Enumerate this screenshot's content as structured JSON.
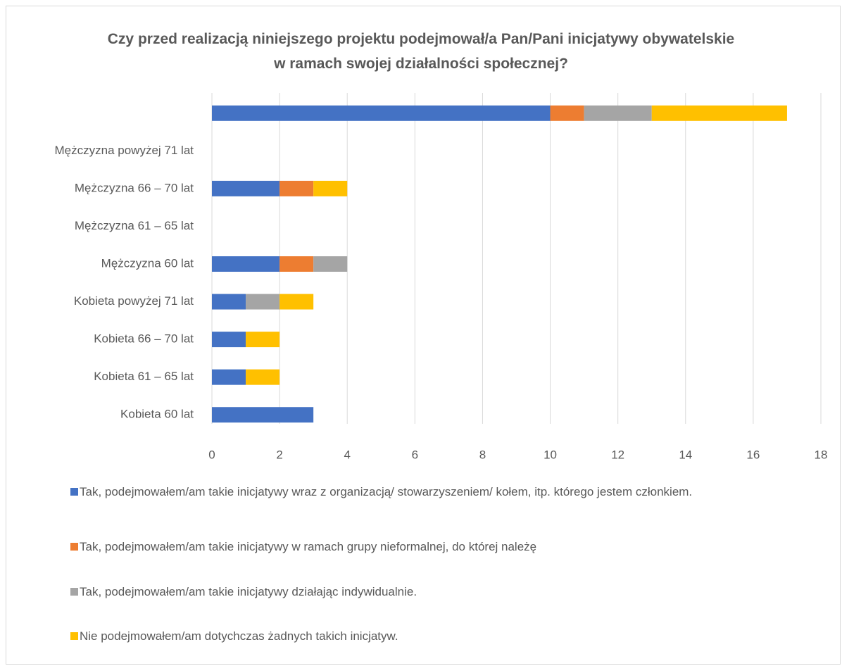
{
  "chart_data": {
    "type": "bar",
    "orientation": "horizontal",
    "stacked": true,
    "title": "Czy przed realizacją niniejszego projektu podejmował/a Pan/Pani inicjatywy obywatelskie w ramach swojej działalności społecznej?",
    "categories": [
      null,
      "Mężczyzna powyżej 71 lat",
      "Mężczyzna 66 – 70 lat",
      "Mężczyzna 61 – 65 lat",
      "Mężczyzna 60 lat",
      "Kobieta powyżej 71 lat",
      "Kobieta 66 – 70 lat",
      "Kobieta 61 – 65 lat",
      "Kobieta 60 lat"
    ],
    "series": [
      {
        "name": "Tak, podejmowałem/am takie inicjatywy wraz z organizacją/ stowarzyszeniem/ kołem, itp. którego jestem członkiem.",
        "color": "#4472c4",
        "values": [
          10,
          0,
          2,
          0,
          2,
          1,
          1,
          1,
          3
        ]
      },
      {
        "name": "Tak, podejmowałem/am takie inicjatywy w ramach grupy nieformalnej, do której należę",
        "color": "#ed7d31",
        "values": [
          1,
          0,
          1,
          0,
          1,
          0,
          0,
          0,
          0
        ]
      },
      {
        "name": "Tak, podejmowałem/am takie inicjatywy działając indywidualnie.",
        "color": "#a5a5a5",
        "values": [
          2,
          0,
          0,
          0,
          1,
          1,
          0,
          0,
          0
        ]
      },
      {
        "name": "Nie podejmowałem/am dotychczas żadnych takich inicjatyw.",
        "color": "#ffc000",
        "values": [
          4,
          0,
          1,
          0,
          0,
          1,
          1,
          1,
          0
        ]
      }
    ],
    "xlim": [
      0,
      18
    ],
    "xticks": [
      0,
      2,
      4,
      6,
      8,
      10,
      12,
      14,
      16,
      18
    ],
    "grid": true,
    "legend": "bottom"
  }
}
